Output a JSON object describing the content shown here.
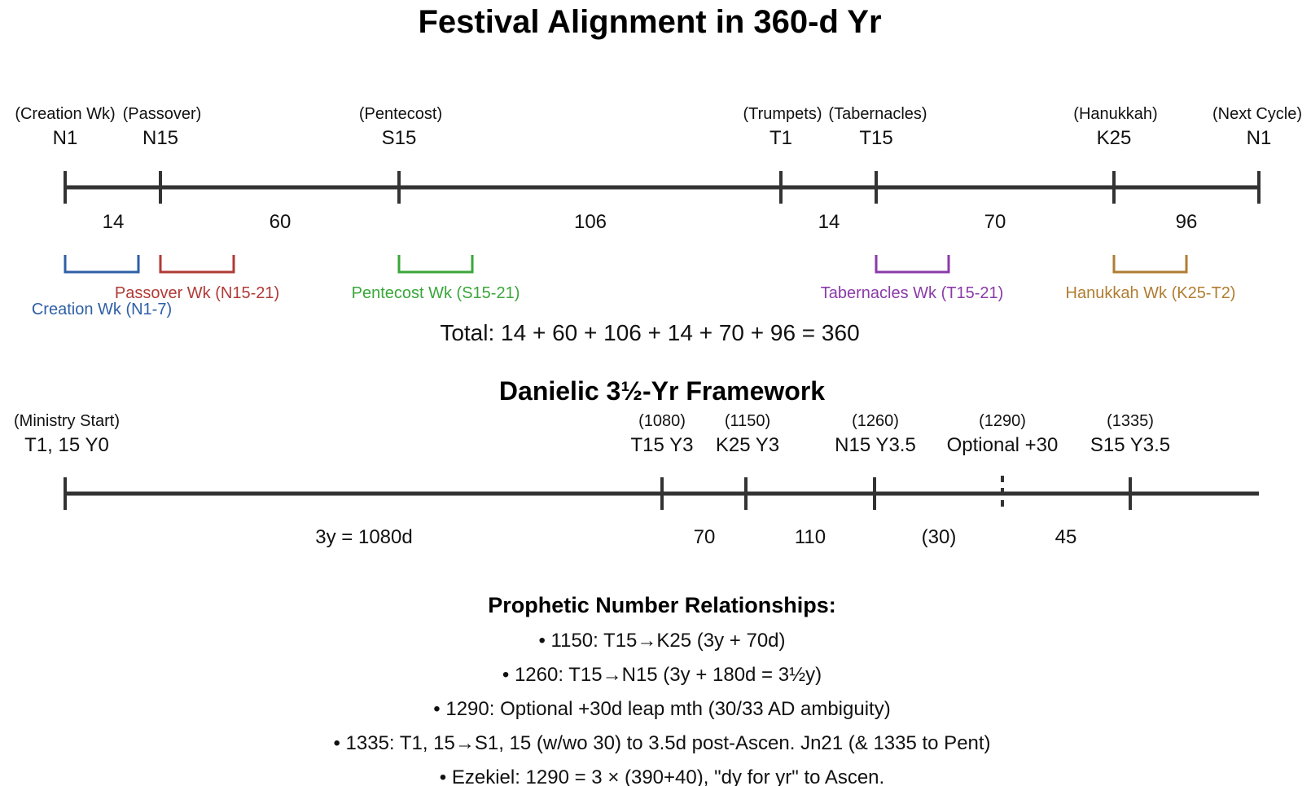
{
  "title": "Festival Alignment in 360-d Yr",
  "festival_timeline": {
    "markers": [
      {
        "label": "(Creation Wk)",
        "code": "N1"
      },
      {
        "label": "(Passover)",
        "code": "N15"
      },
      {
        "label": "(Pentecost)",
        "code": "S15"
      },
      {
        "label": "(Trumpets)",
        "code": "T1"
      },
      {
        "label": "(Tabernacles)",
        "code": "T15"
      },
      {
        "label": "(Hanukkah)",
        "code": "K25"
      },
      {
        "label": "(Next Cycle)",
        "code": "N1"
      }
    ],
    "segments": [
      "14",
      "60",
      "106",
      "14",
      "70",
      "96"
    ],
    "weeks": [
      {
        "label": "Creation Wk (N1-7)",
        "color": "#2e5fa6"
      },
      {
        "label": "Passover Wk (N15-21)",
        "color": "#b03a36"
      },
      {
        "label": "Pentecost Wk (S15-21)",
        "color": "#3aa63a"
      },
      {
        "label": "Tabernacles Wk (T15-21)",
        "color": "#8b3aa8"
      },
      {
        "label": "Hanukkah Wk (K25-T2)",
        "color": "#b07d32"
      }
    ],
    "total": "Total: 14 + 60 + 106 + 14 + 70 + 96 = 360"
  },
  "framework": {
    "title": "Danielic 3½-Yr Framework",
    "markers": [
      {
        "label": "(Ministry Start)",
        "code": "T1, 15 Y0"
      },
      {
        "label": "(1080)",
        "code": "T15 Y3"
      },
      {
        "label": "(1150)",
        "code": "K25 Y3"
      },
      {
        "label": "(1260)",
        "code": "N15 Y3.5"
      },
      {
        "label": "(1290)",
        "code": "Optional +30"
      },
      {
        "label": "(1335)",
        "code": "S15 Y3.5"
      }
    ],
    "segments": [
      "3y = 1080d",
      "70",
      "110",
      "(30)",
      "45"
    ]
  },
  "relationships": {
    "heading": "Prophetic Number Relationships:",
    "items": [
      "• 1150: T15→K25 (3y + 70d)",
      "• 1260: T15→N15 (3y + 180d = 3½y)",
      "• 1290: Optional +30d leap mth (30/33 AD ambiguity)",
      "• 1335: T1, 15→S1, 15 (w/wo 30) to 3.5d post-Ascen. Jn21 (& 1335 to Pent)",
      "• Ezekiel: 1290 = 3 × (390+40), \"dy for yr\" to Ascen."
    ]
  }
}
